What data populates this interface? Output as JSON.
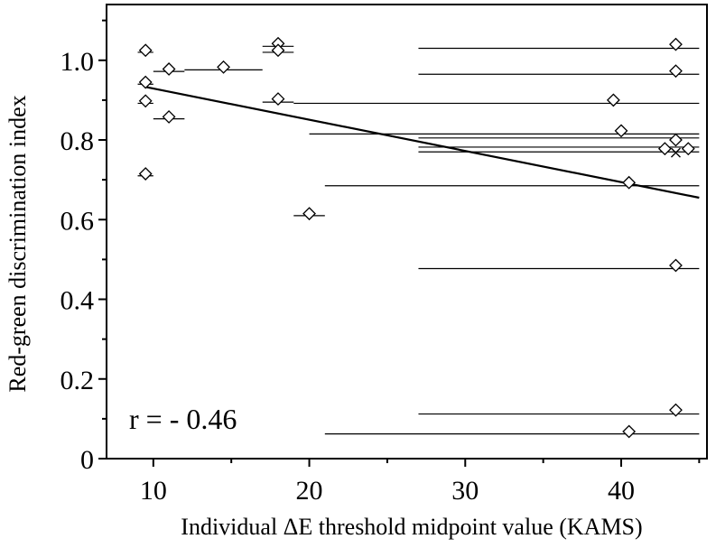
{
  "chart_data": {
    "type": "scatter",
    "title": "",
    "xlabel": "Individual ΔE threshold midpoint value (KAMS)",
    "ylabel": "Red-green discrimination index",
    "xlim": [
      7,
      45.5
    ],
    "ylim": [
      0,
      1.14
    ],
    "x_ticks": [
      10,
      20,
      30,
      40
    ],
    "x_tick_labels": [
      "10",
      "20",
      "30",
      "40"
    ],
    "y_ticks": [
      0,
      0.2,
      0.4,
      0.6,
      0.8,
      1.0
    ],
    "y_tick_labels": [
      "0",
      "0.2",
      "0.4",
      "0.6",
      "0.8",
      "1.0"
    ],
    "grid": false,
    "annotation": "r = - 0.46",
    "series": [
      {
        "marker": "diamond",
        "points": [
          {
            "x": 9.5,
            "y": 1.025,
            "xmin": 9.0,
            "xmax": 10.0,
            "ybar": 1.02
          },
          {
            "x": 9.5,
            "y": 0.945,
            "xmin": 9.0,
            "xmax": 10.0,
            "ybar": 0.94
          },
          {
            "x": 9.5,
            "y": 0.898,
            "xmin": 9.0,
            "xmax": 10.0,
            "ybar": 0.892
          },
          {
            "x": 9.5,
            "y": 0.715,
            "xmin": 9.0,
            "xmax": 10.0,
            "ybar": 0.71
          },
          {
            "x": 11.0,
            "y": 0.978,
            "xmin": 10.0,
            "xmax": 12.0,
            "ybar": 0.972
          },
          {
            "x": 11.0,
            "y": 0.858,
            "xmin": 10.0,
            "xmax": 12.0,
            "ybar": 0.853
          },
          {
            "x": 14.5,
            "y": 0.983,
            "xmin": 12.0,
            "xmax": 17.0,
            "ybar": 0.976
          },
          {
            "x": 18.0,
            "y": 1.042,
            "xmin": 17.0,
            "xmax": 19.0,
            "ybar": 1.035
          },
          {
            "x": 18.0,
            "y": 1.025,
            "xmin": 17.0,
            "xmax": 19.0,
            "ybar": 1.02
          },
          {
            "x": 18.0,
            "y": 0.903,
            "xmin": 17.0,
            "xmax": 19.0,
            "ybar": 0.895
          },
          {
            "x": 20.0,
            "y": 0.615,
            "xmin": 19.0,
            "xmax": 21.0,
            "ybar": 0.61
          },
          {
            "x": 39.5,
            "y": 0.9,
            "xmin": 19.0,
            "xmax": 45.0,
            "ybar": 0.892
          },
          {
            "x": 40.0,
            "y": 0.823,
            "xmin": 20.0,
            "xmax": 45.0,
            "ybar": 0.815
          },
          {
            "x": 40.5,
            "y": 0.693,
            "xmin": 21.0,
            "xmax": 45.0,
            "ybar": 0.685
          },
          {
            "x": 43.5,
            "y": 1.04,
            "xmin": 27.0,
            "xmax": 45.0,
            "ybar": 1.03
          },
          {
            "x": 43.5,
            "y": 0.973,
            "xmin": 27.0,
            "xmax": 45.0,
            "ybar": 0.965
          },
          {
            "x": 43.5,
            "y": 0.8,
            "xmin": 27.0,
            "xmax": 45.0,
            "ybar": 0.805
          },
          {
            "x": 42.8,
            "y": 0.778,
            "xmin": 27.0,
            "xmax": 45.0,
            "ybar": 0.782
          },
          {
            "x": 44.3,
            "y": 0.778,
            "xmin": 27.0,
            "xmax": 45.0,
            "ybar": 0.77
          },
          {
            "x": 43.5,
            "y": 0.485,
            "xmin": 27.0,
            "xmax": 45.0,
            "ybar": 0.477
          },
          {
            "x": 43.5,
            "y": 0.122,
            "xmin": 27.0,
            "xmax": 45.0,
            "ybar": 0.112
          },
          {
            "x": 40.5,
            "y": 0.068,
            "xmin": 21.0,
            "xmax": 45.0,
            "ybar": 0.062
          }
        ]
      },
      {
        "marker": "cross",
        "points": [
          {
            "x": 43.5,
            "y": 0.768
          }
        ]
      }
    ],
    "trend_line": {
      "x": [
        9.5,
        45.0
      ],
      "y": [
        0.933,
        0.655
      ]
    }
  }
}
